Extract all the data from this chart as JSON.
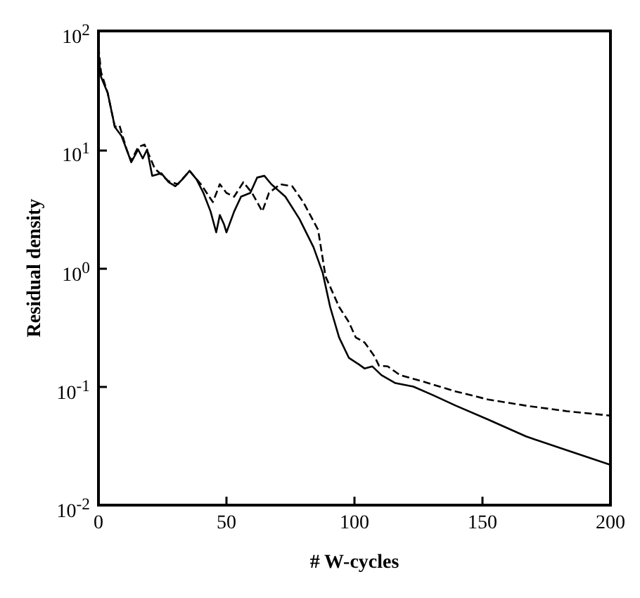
{
  "chart_data": {
    "type": "line",
    "xlabel": "# W-cycles",
    "ylabel": "Residual density",
    "log": "y",
    "xlim": [
      0,
      200
    ],
    "xticks": [
      0,
      50,
      100,
      150,
      200
    ],
    "ylim": [
      0.01,
      100
    ],
    "yticks": [
      {
        "value": 0.01,
        "label": "10$^{-2}$"
      },
      {
        "value": 0.1,
        "label": "10$^{-1}$"
      },
      {
        "value": 1,
        "label": "10$^{0}$"
      },
      {
        "value": 10,
        "label": "10$^{1}$"
      },
      {
        "value": 100,
        "label": "10$^{2}$"
      }
    ],
    "grid": false,
    "marker": "none",
    "series": [
      {
        "color": "#000000",
        "line_style": "solid",
        "x": [
          0,
          1,
          3.6,
          6.4,
          9,
          11,
          12.8,
          15.5,
          17.3,
          19,
          21,
          24.6,
          27.4,
          30,
          32.8,
          35.6,
          38.3,
          41,
          43.8,
          46,
          47.4,
          49,
          50,
          53,
          55.7,
          59.3,
          62,
          64.8,
          67.5,
          73,
          78.5,
          84,
          87.6,
          90.5,
          94,
          97.8,
          101.5,
          104,
          107,
          110.5,
          116,
          123,
          130.5,
          139.6,
          152,
          167,
          183,
          199.6
        ],
        "values": [
          62,
          41,
          30,
          15.5,
          13,
          10,
          7.8,
          10,
          8.4,
          10,
          6,
          6.3,
          5.3,
          4.9,
          5.6,
          6.6,
          5.6,
          4.3,
          3,
          2,
          2.8,
          2.35,
          2,
          3,
          4,
          4.3,
          5.8,
          6,
          5.1,
          4,
          2.6,
          1.5,
          0.91,
          0.47,
          0.26,
          0.175,
          0.155,
          0.142,
          0.148,
          0.125,
          0.107,
          0.1,
          0.085,
          0.069,
          0.053,
          0.038,
          0.029,
          0.022
        ]
      },
      {
        "color": "#000000",
        "line_style": "dashed",
        "x": [
          0,
          1,
          3.6,
          6.4,
          8.2,
          11,
          12.8,
          15.5,
          18,
          22,
          27.4,
          31,
          35.6,
          40,
          44.7,
          47.4,
          50,
          53,
          56.6,
          60,
          64,
          66.6,
          71,
          75.7,
          80,
          85.8,
          88.7,
          94,
          97.8,
          100.5,
          104,
          107.8,
          109.6,
          113,
          117.8,
          127,
          139.6,
          152,
          167,
          183,
          199.6
        ],
        "values": [
          74,
          45,
          30,
          15.5,
          16,
          10,
          8,
          10.5,
          11,
          6.9,
          5.4,
          5.1,
          6.6,
          5.1,
          3.6,
          5.1,
          4.3,
          4,
          5.3,
          4.3,
          3,
          4.3,
          5.1,
          4.9,
          3.6,
          2.1,
          0.85,
          0.47,
          0.35,
          0.26,
          0.235,
          0.18,
          0.15,
          0.148,
          0.125,
          0.11,
          0.091,
          0.078,
          0.069,
          0.062,
          0.057
        ]
      }
    ]
  }
}
